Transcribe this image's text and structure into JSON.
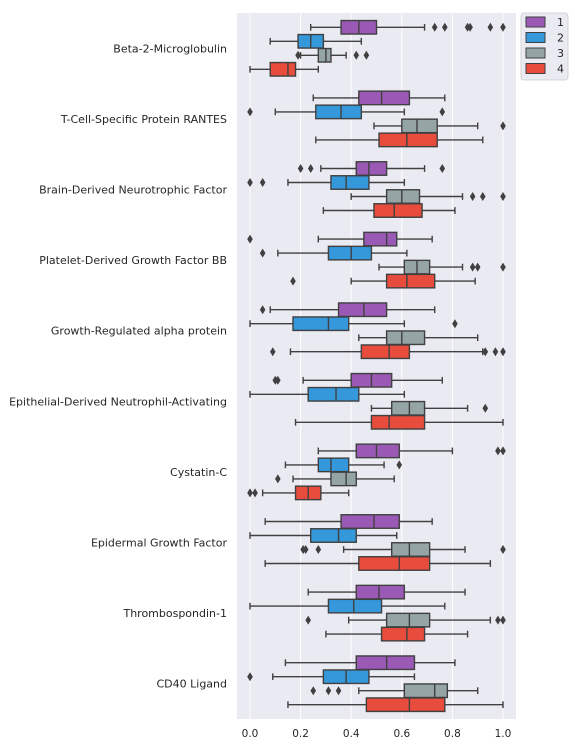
{
  "chart_data": {
    "type": "boxplot",
    "orientation": "horizontal",
    "xlim": [
      -0.05,
      1.05
    ],
    "x_ticks": [
      0.0,
      0.2,
      0.4,
      0.6,
      0.8,
      1.0
    ],
    "x_tick_labels": [
      "0.0",
      "0.2",
      "0.4",
      "0.6",
      "0.8",
      "1.0"
    ],
    "grid": true,
    "legend_position": "outside-top-right",
    "series": [
      {
        "name": "1",
        "color": "#9b59b6"
      },
      {
        "name": "2",
        "color": "#3498db"
      },
      {
        "name": "3",
        "color": "#95a5a6"
      },
      {
        "name": "4",
        "color": "#e74c3c"
      }
    ],
    "categories": [
      {
        "label": "Beta-2-Microglobulin",
        "boxes": [
          {
            "wlo": 0.24,
            "q1": 0.36,
            "med": 0.43,
            "q3": 0.5,
            "whi": 0.69,
            "fliers": [
              0.73,
              0.77,
              0.86,
              0.87,
              0.95,
              1.0
            ]
          },
          {
            "wlo": 0.08,
            "q1": 0.19,
            "med": 0.24,
            "q3": 0.29,
            "whi": 0.44,
            "fliers": []
          },
          {
            "wlo": 0.2,
            "q1": 0.27,
            "med": 0.3,
            "q3": 0.32,
            "whi": 0.38,
            "fliers": [
              0.19,
              0.42,
              0.46
            ]
          },
          {
            "wlo": 0.0,
            "q1": 0.08,
            "med": 0.15,
            "q3": 0.18,
            "whi": 0.27,
            "fliers": []
          }
        ]
      },
      {
        "label": "T-Cell-Specific Protein RANTES",
        "boxes": [
          {
            "wlo": 0.25,
            "q1": 0.43,
            "med": 0.52,
            "q3": 0.63,
            "whi": 0.77,
            "fliers": []
          },
          {
            "wlo": 0.1,
            "q1": 0.26,
            "med": 0.36,
            "q3": 0.44,
            "whi": 0.61,
            "fliers": [
              0.0,
              0.76
            ]
          },
          {
            "wlo": 0.49,
            "q1": 0.6,
            "med": 0.66,
            "q3": 0.74,
            "whi": 0.9,
            "fliers": [
              1.0
            ]
          },
          {
            "wlo": 0.26,
            "q1": 0.51,
            "med": 0.62,
            "q3": 0.74,
            "whi": 0.92,
            "fliers": []
          }
        ]
      },
      {
        "label": "Brain-Derived Neurotrophic Factor",
        "boxes": [
          {
            "wlo": 0.28,
            "q1": 0.42,
            "med": 0.47,
            "q3": 0.54,
            "whi": 0.69,
            "fliers": [
              0.2,
              0.24,
              0.76
            ]
          },
          {
            "wlo": 0.15,
            "q1": 0.32,
            "med": 0.38,
            "q3": 0.47,
            "whi": 0.61,
            "fliers": [
              0.0,
              0.05
            ]
          },
          {
            "wlo": 0.4,
            "q1": 0.54,
            "med": 0.6,
            "q3": 0.67,
            "whi": 0.84,
            "fliers": [
              0.88,
              0.92,
              1.0
            ]
          },
          {
            "wlo": 0.29,
            "q1": 0.49,
            "med": 0.57,
            "q3": 0.68,
            "whi": 0.81,
            "fliers": []
          }
        ]
      },
      {
        "label": "Platelet-Derived Growth Factor BB",
        "boxes": [
          {
            "wlo": 0.27,
            "q1": 0.45,
            "med": 0.54,
            "q3": 0.58,
            "whi": 0.72,
            "fliers": [
              0.0
            ]
          },
          {
            "wlo": 0.11,
            "q1": 0.31,
            "med": 0.4,
            "q3": 0.48,
            "whi": 0.62,
            "fliers": [
              0.05
            ]
          },
          {
            "wlo": 0.51,
            "q1": 0.61,
            "med": 0.66,
            "q3": 0.71,
            "whi": 0.84,
            "fliers": [
              0.88,
              0.9,
              1.0
            ]
          },
          {
            "wlo": 0.4,
            "q1": 0.54,
            "med": 0.62,
            "q3": 0.73,
            "whi": 0.89,
            "fliers": [
              0.17
            ]
          }
        ]
      },
      {
        "label": "Growth-Regulated alpha protein",
        "boxes": [
          {
            "wlo": 0.08,
            "q1": 0.35,
            "med": 0.45,
            "q3": 0.54,
            "whi": 0.73,
            "fliers": [
              0.05
            ]
          },
          {
            "wlo": 0.0,
            "q1": 0.17,
            "med": 0.31,
            "q3": 0.39,
            "whi": 0.61,
            "fliers": [
              0.81
            ]
          },
          {
            "wlo": 0.43,
            "q1": 0.54,
            "med": 0.6,
            "q3": 0.69,
            "whi": 0.9,
            "fliers": []
          },
          {
            "wlo": 0.16,
            "q1": 0.44,
            "med": 0.55,
            "q3": 0.63,
            "whi": 0.92,
            "fliers": [
              0.09,
              0.93,
              0.97,
              1.0
            ]
          }
        ]
      },
      {
        "label": "Epithelial-Derived Neutrophil-Activating",
        "boxes": [
          {
            "wlo": 0.21,
            "q1": 0.4,
            "med": 0.48,
            "q3": 0.56,
            "whi": 0.76,
            "fliers": [
              0.1,
              0.11
            ]
          },
          {
            "wlo": 0.0,
            "q1": 0.23,
            "med": 0.34,
            "q3": 0.43,
            "whi": 0.61,
            "fliers": []
          },
          {
            "wlo": 0.48,
            "q1": 0.56,
            "med": 0.63,
            "q3": 0.69,
            "whi": 0.86,
            "fliers": [
              0.93
            ]
          },
          {
            "wlo": 0.18,
            "q1": 0.48,
            "med": 0.55,
            "q3": 0.69,
            "whi": 1.0,
            "fliers": []
          }
        ]
      },
      {
        "label": "Cystatin-C",
        "boxes": [
          {
            "wlo": 0.27,
            "q1": 0.42,
            "med": 0.5,
            "q3": 0.59,
            "whi": 0.8,
            "fliers": [
              0.98,
              1.0
            ]
          },
          {
            "wlo": 0.14,
            "q1": 0.27,
            "med": 0.32,
            "q3": 0.39,
            "whi": 0.53,
            "fliers": [
              0.59
            ]
          },
          {
            "wlo": 0.17,
            "q1": 0.32,
            "med": 0.38,
            "q3": 0.42,
            "whi": 0.57,
            "fliers": [
              0.11
            ]
          },
          {
            "wlo": 0.05,
            "q1": 0.18,
            "med": 0.23,
            "q3": 0.28,
            "whi": 0.39,
            "fliers": [
              0.0,
              0.02
            ]
          }
        ]
      },
      {
        "label": "Epidermal Growth Factor",
        "boxes": [
          {
            "wlo": 0.06,
            "q1": 0.36,
            "med": 0.49,
            "q3": 0.59,
            "whi": 0.72,
            "fliers": []
          },
          {
            "wlo": 0.0,
            "q1": 0.24,
            "med": 0.35,
            "q3": 0.42,
            "whi": 0.58,
            "fliers": []
          },
          {
            "wlo": 0.37,
            "q1": 0.56,
            "med": 0.63,
            "q3": 0.71,
            "whi": 0.85,
            "fliers": [
              0.21,
              0.22,
              0.27,
              1.0
            ]
          },
          {
            "wlo": 0.06,
            "q1": 0.43,
            "med": 0.59,
            "q3": 0.71,
            "whi": 0.95,
            "fliers": []
          }
        ]
      },
      {
        "label": "Thrombospondin-1",
        "boxes": [
          {
            "wlo": 0.23,
            "q1": 0.42,
            "med": 0.51,
            "q3": 0.61,
            "whi": 0.85,
            "fliers": []
          },
          {
            "wlo": 0.0,
            "q1": 0.31,
            "med": 0.41,
            "q3": 0.52,
            "whi": 0.77,
            "fliers": []
          },
          {
            "wlo": 0.39,
            "q1": 0.54,
            "med": 0.63,
            "q3": 0.71,
            "whi": 0.95,
            "fliers": [
              0.23,
              0.98,
              1.0
            ]
          },
          {
            "wlo": 0.3,
            "q1": 0.52,
            "med": 0.62,
            "q3": 0.69,
            "whi": 0.86,
            "fliers": []
          }
        ]
      },
      {
        "label": "CD40 Ligand",
        "boxes": [
          {
            "wlo": 0.14,
            "q1": 0.42,
            "med": 0.54,
            "q3": 0.65,
            "whi": 0.81,
            "fliers": []
          },
          {
            "wlo": 0.09,
            "q1": 0.29,
            "med": 0.38,
            "q3": 0.47,
            "whi": 0.65,
            "fliers": [
              0.0
            ]
          },
          {
            "wlo": 0.43,
            "q1": 0.61,
            "med": 0.73,
            "q3": 0.78,
            "whi": 0.9,
            "fliers": [
              0.25,
              0.31,
              0.35
            ]
          },
          {
            "wlo": 0.15,
            "q1": 0.46,
            "med": 0.63,
            "q3": 0.77,
            "whi": 1.0,
            "fliers": []
          }
        ]
      }
    ]
  }
}
